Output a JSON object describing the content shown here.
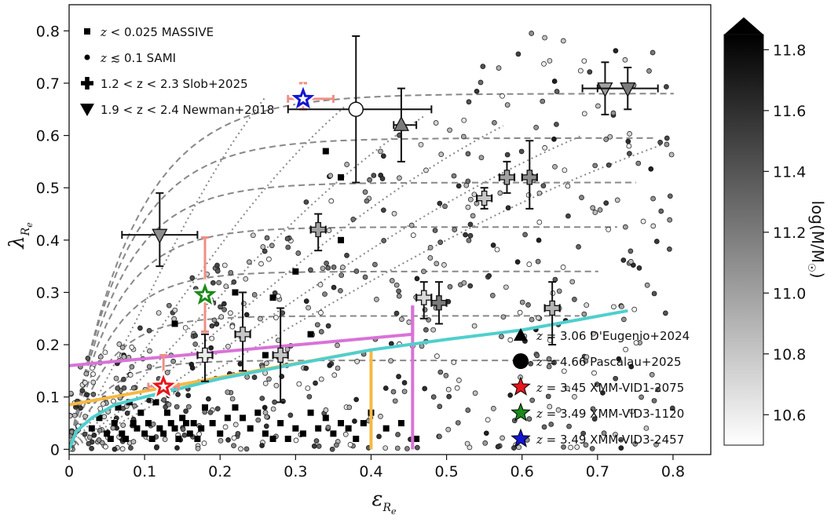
{
  "chart_data": {
    "type": "scatter",
    "xlabel": "ε",
    "xlabel_sub": "R",
    "xlabel_subsub": "e",
    "ylabel": "λ",
    "ylabel_sub": "R",
    "ylabel_subsub": "e",
    "xlim": [
      0,
      0.85
    ],
    "ylim": [
      -0.01,
      0.85
    ],
    "x_ticks": [
      0,
      0.1,
      0.2,
      0.3,
      0.4,
      0.5,
      0.6,
      0.7,
      0.8
    ],
    "x_tick_labels": [
      "0",
      "0.1",
      "0.2",
      "0.3",
      "0.4",
      "0.5",
      "0.6",
      "0.7",
      "0.8"
    ],
    "y_ticks": [
      0,
      0.1,
      0.2,
      0.3,
      0.4,
      0.5,
      0.6,
      0.7,
      0.8
    ],
    "y_tick_labels": [
      "0",
      "0.1",
      "0.2",
      "0.3",
      "0.4",
      "0.5",
      "0.6",
      "0.7",
      "0.8"
    ],
    "grid": false,
    "colorbar": {
      "label": "log(M/M",
      "label_sym": "☉",
      "label_end": ")",
      "range": [
        10.5,
        11.85
      ],
      "ticks": [
        10.6,
        10.8,
        11.0,
        11.2,
        11.4,
        11.6,
        11.8
      ],
      "tick_labels": [
        "10.6",
        "10.8",
        "11.0",
        "11.2",
        "11.4",
        "11.6",
        "11.8"
      ],
      "colormap": "Greys"
    },
    "legend_left": [
      {
        "marker": "square",
        "z": "z",
        "text": " < 0.025 MASSIVE"
      },
      {
        "marker": "circle-small",
        "z": "z",
        "text": " ≲ 0.1 SAMI"
      },
      {
        "marker": "plus",
        "z": "",
        "text": "1.2 < z < 2.3 Slob+2025"
      },
      {
        "marker": "triangle-down",
        "z": "",
        "text": "1.9 < z < 2.4 Newman+2018"
      }
    ],
    "legend_right": [
      {
        "marker": "triangle-up",
        "z": "z",
        "text": " = 3.06 D'Eugenio+2024",
        "color": "#111111"
      },
      {
        "marker": "circle-big",
        "z": "z",
        "text": " = 4.66 Pascalau+2025",
        "color": "#111111"
      },
      {
        "marker": "star",
        "z": "z",
        "text": " = 3.45 XMM-VID1-2075",
        "color": "#e8161b"
      },
      {
        "marker": "star",
        "z": "z",
        "text": " = 3.49 XMM-VID3-1120",
        "color": "#1a8a1a"
      },
      {
        "marker": "star",
        "z": "z",
        "text": " = 3.49 XMM-VID3-2457",
        "color": "#1414d4"
      }
    ],
    "series": [
      {
        "name": "z = 3.45 XMM-VID1-2075",
        "marker": "star",
        "color": "#e8161b",
        "x": 0.125,
        "y": 0.12,
        "xerr": [
          0.02,
          0.02
        ],
        "yerr": [
          0.01,
          0.06
        ]
      },
      {
        "name": "z = 3.49 XMM-VID3-1120",
        "marker": "star",
        "color": "#1a8a1a",
        "x": 0.18,
        "y": 0.295,
        "xerr": [
          0.0,
          0.0
        ],
        "yerr": [
          0.07,
          0.11
        ]
      },
      {
        "name": "z = 3.49 XMM-VID3-2457",
        "marker": "star",
        "color": "#1414d4",
        "x": 0.31,
        "y": 0.67,
        "xerr": [
          0.02,
          0.04
        ],
        "yerr": [
          0.02,
          0.03
        ]
      },
      {
        "name": "z = 3.06 D'Eugenio+2024",
        "marker": "triangle-up",
        "x": 0.44,
        "y": 0.62,
        "fill": 11.2,
        "xerr": [
          0.01,
          0.02
        ],
        "yerr": [
          0.07,
          0.07
        ]
      },
      {
        "name": "z = 4.66 Pascalau+2025",
        "marker": "circle-big",
        "x": 0.38,
        "y": 0.65,
        "xerr": [
          0.09,
          0.1
        ],
        "yerr": [
          0.14,
          0.14
        ]
      },
      {
        "name": "1.9 < z < 2.4 Newman+2018",
        "marker": "triangle-down",
        "points": [
          {
            "x": 0.12,
            "y": 0.41,
            "fill": 11.1,
            "xerr": [
              0.05,
              0.05
            ],
            "yerr": [
              0.06,
              0.08
            ]
          },
          {
            "x": 0.71,
            "y": 0.69,
            "fill": 11.0,
            "xerr": [
              0.03,
              0.03
            ],
            "yerr": [
              0.05,
              0.05
            ]
          },
          {
            "x": 0.74,
            "y": 0.69,
            "fill": 11.2,
            "xerr": [
              0.04,
              0.04
            ],
            "yerr": [
              0.04,
              0.04
            ]
          }
        ]
      },
      {
        "name": "1.2 < z < 2.3 Slob+2025",
        "marker": "plus",
        "points": [
          {
            "x": 0.18,
            "y": 0.18,
            "fill": 10.6,
            "xerr": [
              0.01,
              0.01
            ],
            "yerr": [
              0.05,
              0.04
            ]
          },
          {
            "x": 0.23,
            "y": 0.22,
            "fill": 10.8,
            "xerr": [
              0.01,
              0.01
            ],
            "yerr": [
              0.07,
              0.08
            ]
          },
          {
            "x": 0.28,
            "y": 0.18,
            "fill": 10.8,
            "xerr": [
              0.01,
              0.01
            ],
            "yerr": [
              0.09,
              0.09
            ]
          },
          {
            "x": 0.33,
            "y": 0.42,
            "fill": 11.0,
            "xerr": [
              0.01,
              0.01
            ],
            "yerr": [
              0.04,
              0.03
            ]
          },
          {
            "x": 0.47,
            "y": 0.29,
            "fill": 10.7,
            "xerr": [
              0.01,
              0.01
            ],
            "yerr": [
              0.04,
              0.03
            ]
          },
          {
            "x": 0.49,
            "y": 0.28,
            "fill": 11.2,
            "xerr": [
              0.01,
              0.01
            ],
            "yerr": [
              0.04,
              0.04
            ]
          },
          {
            "x": 0.55,
            "y": 0.48,
            "fill": 10.8,
            "xerr": [
              0.01,
              0.01
            ],
            "yerr": [
              0.02,
              0.02
            ]
          },
          {
            "x": 0.58,
            "y": 0.52,
            "fill": 11.0,
            "xerr": [
              0.01,
              0.01
            ],
            "yerr": [
              0.03,
              0.03
            ]
          },
          {
            "x": 0.61,
            "y": 0.52,
            "fill": 11.1,
            "xerr": [
              0.01,
              0.01
            ],
            "yerr": [
              0.06,
              0.07
            ]
          },
          {
            "x": 0.64,
            "y": 0.27,
            "fill": 10.9,
            "xerr": [
              0.01,
              0.01
            ],
            "yerr": [
              0.07,
              0.05
            ]
          }
        ]
      },
      {
        "name": "z < 0.025 MASSIVE",
        "marker": "square",
        "color": "#000000",
        "points": [
          [
            0.03,
            0.04
          ],
          [
            0.04,
            0.06
          ],
          [
            0.05,
            0.03
          ],
          [
            0.055,
            0.02
          ],
          [
            0.06,
            0.05
          ],
          [
            0.065,
            0.08
          ],
          [
            0.07,
            0.03
          ],
          [
            0.075,
            0.02
          ],
          [
            0.08,
            0.09
          ],
          [
            0.085,
            0.05
          ],
          [
            0.09,
            0.04
          ],
          [
            0.095,
            0.07
          ],
          [
            0.1,
            0.03
          ],
          [
            0.105,
            0.05
          ],
          [
            0.11,
            0.02
          ],
          [
            0.115,
            0.09
          ],
          [
            0.12,
            0.04
          ],
          [
            0.125,
            0.03
          ],
          [
            0.13,
            0.07
          ],
          [
            0.135,
            0.05
          ],
          [
            0.14,
            0.04
          ],
          [
            0.145,
            0.02
          ],
          [
            0.15,
            0.06
          ],
          [
            0.155,
            0.05
          ],
          [
            0.16,
            0.03
          ],
          [
            0.165,
            0.05
          ],
          [
            0.17,
            0.02
          ],
          [
            0.175,
            0.04
          ],
          [
            0.18,
            0.08
          ],
          [
            0.19,
            0.05
          ],
          [
            0.2,
            0.03
          ],
          [
            0.21,
            0.06
          ],
          [
            0.22,
            0.08
          ],
          [
            0.23,
            0.06
          ],
          [
            0.24,
            0.04
          ],
          [
            0.25,
            0.07
          ],
          [
            0.26,
            0.03
          ],
          [
            0.27,
            0.02
          ],
          [
            0.28,
            0.05
          ],
          [
            0.29,
            0.02
          ],
          [
            0.3,
            0.04
          ],
          [
            0.31,
            0.03
          ],
          [
            0.32,
            0.07
          ],
          [
            0.33,
            0.04
          ],
          [
            0.34,
            0.06
          ],
          [
            0.35,
            0.03
          ],
          [
            0.36,
            0.05
          ],
          [
            0.37,
            0.04
          ],
          [
            0.38,
            0.02
          ],
          [
            0.39,
            0.05
          ],
          [
            0.4,
            0.07
          ],
          [
            0.42,
            0.04
          ],
          [
            0.44,
            0.05
          ],
          [
            0.46,
            0.02
          ],
          [
            0.14,
            0.24
          ],
          [
            0.22,
            0.3
          ],
          [
            0.3,
            0.34
          ],
          [
            0.36,
            0.4
          ],
          [
            0.34,
            0.57
          ],
          [
            0.36,
            0.52
          ],
          [
            0.27,
            0.29
          ],
          [
            0.23,
            0.22
          ],
          [
            0.26,
            0.18
          ],
          [
            0.32,
            0.22
          ]
        ]
      },
      {
        "name": "z ≲ 0.1 SAMI",
        "marker": "circle-small",
        "count": 640,
        "x_range": [
          0.0,
          0.8
        ],
        "y_range": [
          0.0,
          0.8
        ],
        "fill_range": [
          10.5,
          11.7
        ]
      }
    ],
    "model_curves": {
      "dashed": [
        0.2,
        0.3,
        0.4,
        0.5,
        0.6,
        0.7,
        0.8
      ],
      "dotted": [
        0.2,
        0.3,
        0.4,
        0.5,
        0.6,
        0.7
      ],
      "color": "#888888"
    },
    "boundaries": [
      {
        "name": "magenta",
        "color": "#d873d8",
        "points": [
          [
            0.0,
            0.16
          ],
          [
            0.455,
            0.22
          ],
          [
            0.455,
            0.275
          ]
        ],
        "end_vertical": [
          0.455,
          0.0
        ]
      },
      {
        "name": "orange",
        "color": "#f5b942",
        "points": [
          [
            0.0,
            0.085
          ],
          [
            0.4,
            0.19
          ]
        ],
        "end_vertical": [
          0.4,
          0.0
        ]
      },
      {
        "name": "cyan",
        "color": "#4fcfce",
        "points": [
          [
            0.0,
            0.0
          ],
          [
            0.01,
            0.035
          ],
          [
            0.03,
            0.06
          ],
          [
            0.06,
            0.085
          ],
          [
            0.1,
            0.1
          ],
          [
            0.2,
            0.135
          ],
          [
            0.3,
            0.163
          ],
          [
            0.4,
            0.19
          ],
          [
            0.5,
            0.21
          ],
          [
            0.6,
            0.228
          ],
          [
            0.74,
            0.265
          ]
        ]
      }
    ]
  }
}
